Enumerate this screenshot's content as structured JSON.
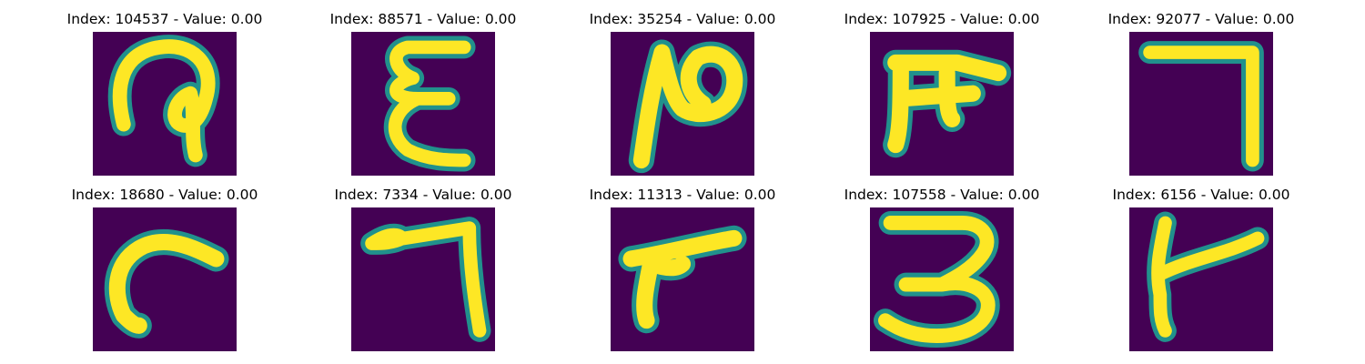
{
  "figure": {
    "colors": {
      "background": "#440154",
      "edge": "#21918c",
      "mid": "#5ec962",
      "stroke": "#fde725"
    },
    "panels": [
      {
        "title": "Index: 104537 - Value: 0.00",
        "glyph": "loop-hook-icon"
      },
      {
        "title": "Index: 88571 - Value: 0.00",
        "glyph": "epsilon-icon"
      },
      {
        "title": "Index: 35254 - Value: 0.00",
        "glyph": "n-curl-icon"
      },
      {
        "title": "Index: 107925 - Value: 0.00",
        "glyph": "pi-hook-icon"
      },
      {
        "title": "Index: 92077 - Value: 0.00",
        "glyph": "seven-icon"
      },
      {
        "title": "Index: 18680 - Value: 0.00",
        "glyph": "c-curve-icon"
      },
      {
        "title": "Index: 7334 - Value: 0.00",
        "glyph": "seven-hook-icon"
      },
      {
        "title": "Index: 11313 - Value: 0.00",
        "glyph": "slanted-seven-icon"
      },
      {
        "title": "Index: 107558 - Value: 0.00",
        "glyph": "three-icon"
      },
      {
        "title": "Index: 6156 - Value: 0.00",
        "glyph": "y-shape-icon"
      }
    ]
  }
}
